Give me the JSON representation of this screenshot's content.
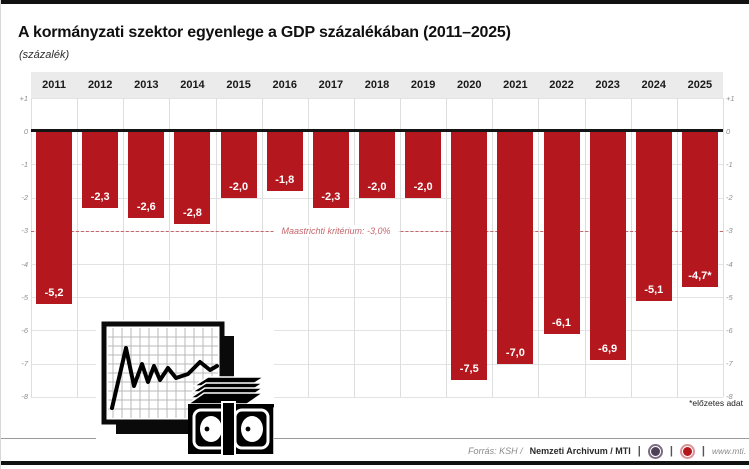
{
  "header": {
    "title": "A kormányzati szektor egyenlege a GDP százalékában (2011–2025)",
    "subtitle": "(százalék)"
  },
  "chart_data": {
    "type": "bar",
    "title": "A kormányzati szektor egyenlege a GDP százalékában (2011–2025)",
    "unit_label": "(százalék)",
    "categories": [
      "2011",
      "2012",
      "2013",
      "2014",
      "2015",
      "2016",
      "2017",
      "2018",
      "2019",
      "2020",
      "2021",
      "2022",
      "2023",
      "2024",
      "2025"
    ],
    "values": [
      -5.2,
      -2.3,
      -2.6,
      -2.8,
      -2.0,
      -1.8,
      -2.3,
      -2.0,
      -2.0,
      -7.5,
      -7.0,
      -6.1,
      -6.9,
      -5.1,
      -4.7
    ],
    "bar_labels": [
      "-5,2",
      "-2,3",
      "-2,6",
      "-2,8",
      "-2,0",
      "-1,8",
      "-2,3",
      "-2,0",
      "-2,0",
      "-7,5",
      "-7,0",
      "-6,1",
      "-6,9",
      "-5,1",
      "-4,7*"
    ],
    "ylim": [
      -8,
      1
    ],
    "y_ticks": [
      "+1",
      "0",
      "-1",
      "-2",
      "-3",
      "-4",
      "-5",
      "-6",
      "-7",
      "-8"
    ],
    "grid": true,
    "legend": "none",
    "bar_color": "#b5171e",
    "reference_line": {
      "value": -3.0,
      "label": "Maastrichti kritérium: -3,0%",
      "color": "#c4666b"
    },
    "footnote": "*előzetes adat"
  },
  "footer": {
    "source_italic": "Forrás: KSH /",
    "source_bold": "Nemzeti Archivum / MTI",
    "separator": "|",
    "website": "www.mti."
  }
}
